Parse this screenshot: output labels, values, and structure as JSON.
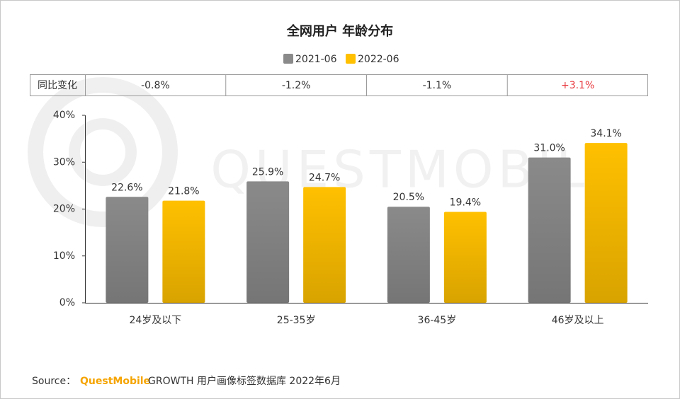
{
  "chart_data": {
    "type": "bar",
    "title": "全网用户 年龄分布",
    "categories": [
      "24岁及以下",
      "25-35岁",
      "36-45岁",
      "46岁及以上"
    ],
    "series": [
      {
        "name": "2021-06",
        "color": "#8a8a8a",
        "values": [
          22.6,
          25.9,
          20.5,
          31.0
        ],
        "value_labels": [
          "22.6%",
          "25.9%",
          "20.5%",
          "31.0%"
        ]
      },
      {
        "name": "2022-06",
        "color": "#ffc000",
        "values": [
          21.8,
          24.7,
          19.4,
          34.1
        ],
        "value_labels": [
          "21.8%",
          "24.7%",
          "19.4%",
          "34.1%"
        ]
      }
    ],
    "ylim": [
      0,
      40
    ],
    "yticks": [
      {
        "value": 0,
        "label": "0%"
      },
      {
        "value": 10,
        "label": "10%"
      },
      {
        "value": 20,
        "label": "20%"
      },
      {
        "value": 30,
        "label": "30%"
      },
      {
        "value": 40,
        "label": "40%"
      }
    ],
    "change_row": {
      "label": "同比变化",
      "values": [
        "-0.8%",
        "-1.2%",
        "-1.1%",
        "+3.1%"
      ],
      "colors": [
        "#333333",
        "#333333",
        "#333333",
        "#e8383d"
      ]
    },
    "watermark": "QUESTMOBILE",
    "source": {
      "prefix": "Source：",
      "brand": "QuestMobile",
      "text": "GROWTH 用户画像标签数据库 2022年6月"
    }
  }
}
